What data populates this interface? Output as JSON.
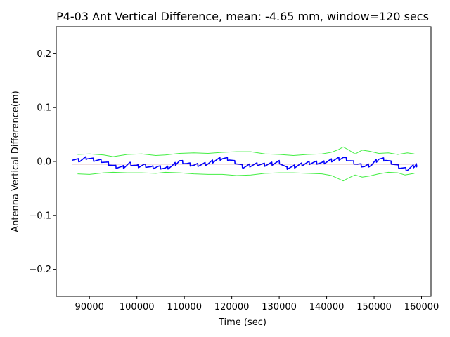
{
  "chart_data": {
    "type": "line",
    "title": "P4-03 Ant Vertical Difference, mean: -4.65 mm, window=120 secs",
    "xlabel": "Time (sec)",
    "ylabel": "Antenna Vertical Difference(m)",
    "xlim": [
      83000,
      162000
    ],
    "ylim": [
      -0.25,
      0.25
    ],
    "xticks": [
      90000,
      100000,
      110000,
      120000,
      130000,
      140000,
      150000,
      160000
    ],
    "xtick_labels": [
      "90000",
      "100000",
      "110000",
      "120000",
      "130000",
      "140000",
      "150000",
      "160000"
    ],
    "yticks": [
      0.2,
      0.1,
      0.0,
      -0.1,
      -0.2
    ],
    "ytick_labels": [
      "0.2",
      "0.1",
      "0.0",
      "−0.1",
      "−0.2"
    ],
    "grid": false,
    "series": [
      {
        "role": "measurement",
        "color": "#0000ff",
        "x": [
          86400,
          88000,
          89500,
          91000,
          92500,
          94000,
          95500,
          97000,
          98500,
          100000,
          101500,
          103000,
          104500,
          106000,
          107500,
          109000,
          110500,
          112000,
          113500,
          115000,
          116500,
          118000,
          119500,
          121000,
          122500,
          124000,
          125500,
          127000,
          128500,
          130000,
          131500,
          133000,
          134500,
          136000,
          137500,
          139000,
          140500,
          142000,
          143500,
          145000,
          146500,
          148000,
          149500,
          151000,
          152500,
          154000,
          155500,
          157000,
          158500,
          159000
        ],
        "y": [
          0.004,
          0.002,
          0.007,
          0.003,
          0.001,
          -0.004,
          -0.01,
          -0.011,
          -0.004,
          -0.009,
          -0.007,
          -0.011,
          -0.01,
          -0.013,
          -0.008,
          0.001,
          -0.004,
          -0.007,
          -0.006,
          -0.004,
          0.002,
          0.006,
          0.004,
          -0.003,
          -0.01,
          -0.007,
          -0.005,
          -0.006,
          -0.004,
          -0.001,
          -0.012,
          -0.01,
          -0.006,
          -0.003,
          -0.002,
          -0.003,
          0.001,
          0.004,
          0.007,
          0.001,
          -0.005,
          -0.009,
          -0.006,
          0.005,
          0.003,
          -0.004,
          -0.011,
          -0.015,
          -0.008,
          -0.007
        ]
      },
      {
        "role": "window-mean",
        "color": "#8b0000",
        "x": [
          86400,
          159000
        ],
        "y": [
          -0.00465,
          -0.00465
        ]
      },
      {
        "role": "upper-bound",
        "color": "#44ee44",
        "x": [
          87500,
          90000,
          93000,
          95000,
          98000,
          101000,
          104000,
          106000,
          109000,
          112000,
          115000,
          118000,
          121000,
          124000,
          127000,
          130000,
          133000,
          136000,
          139000,
          141000,
          142500,
          143500,
          144500,
          146000,
          147500,
          149000,
          151000,
          153000,
          155000,
          157000,
          158500
        ],
        "y": [
          0.013,
          0.014,
          0.012,
          0.009,
          0.013,
          0.014,
          0.011,
          0.012,
          0.015,
          0.016,
          0.015,
          0.017,
          0.018,
          0.018,
          0.014,
          0.013,
          0.011,
          0.013,
          0.014,
          0.017,
          0.022,
          0.027,
          0.022,
          0.014,
          0.021,
          0.019,
          0.015,
          0.016,
          0.013,
          0.016,
          0.014
        ]
      },
      {
        "role": "lower-bound",
        "color": "#44ee44",
        "x": [
          87500,
          90000,
          93000,
          95000,
          98000,
          101000,
          104000,
          106000,
          109000,
          112000,
          115000,
          118000,
          121000,
          124000,
          127000,
          130000,
          133000,
          136000,
          139000,
          141000,
          142500,
          143500,
          144500,
          146000,
          147500,
          149000,
          151000,
          153000,
          155000,
          156500,
          158500
        ],
        "y": [
          -0.023,
          -0.024,
          -0.021,
          -0.02,
          -0.021,
          -0.021,
          -0.022,
          -0.02,
          -0.021,
          -0.023,
          -0.024,
          -0.024,
          -0.026,
          -0.025,
          -0.022,
          -0.021,
          -0.021,
          -0.022,
          -0.023,
          -0.026,
          -0.032,
          -0.036,
          -0.031,
          -0.025,
          -0.029,
          -0.027,
          -0.023,
          -0.02,
          -0.021,
          -0.025,
          -0.022
        ]
      }
    ]
  }
}
